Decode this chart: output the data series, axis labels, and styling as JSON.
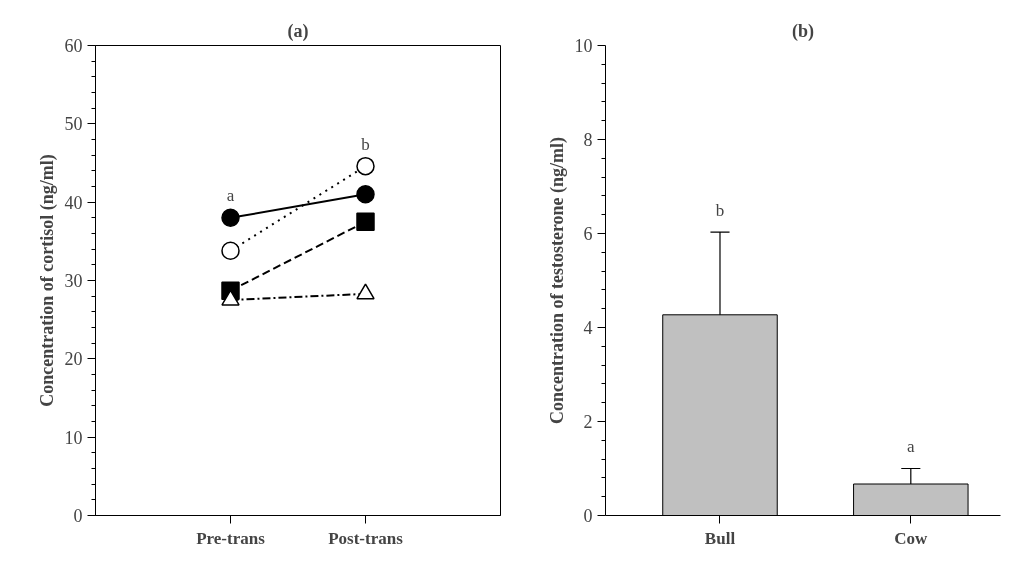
{
  "chart_data": [
    {
      "type": "line",
      "title": "(a)",
      "ylabel": "Concentration of cortisol (ng/ml)",
      "categories": [
        "Pre-trans",
        "Post-trans"
      ],
      "series": [
        {
          "color": "#000000",
          "values": [
            38,
            41
          ],
          "marker": "circle",
          "line_style": "solid"
        },
        {
          "color": "#ffffff",
          "values": [
            33.8,
            44.6
          ],
          "marker": "circle",
          "line_style": "dotted"
        },
        {
          "color": "#000000",
          "values": [
            28.7,
            37.5
          ],
          "marker": "square",
          "line_style": "dashed"
        },
        {
          "color": "#ffffff",
          "values": [
            27.5,
            28.3
          ],
          "marker": "triangle",
          "line_style": "dashdot"
        }
      ],
      "ylim": [
        0,
        60
      ],
      "yticks": [
        0,
        {
          "value": 2,
          "label": null
        },
        {
          "value": 4,
          "label": null
        },
        {
          "value": 6,
          "label": null
        },
        {
          "value": 8,
          "label": null
        },
        10,
        {
          "value": 12,
          "label": null
        },
        {
          "value": 14,
          "label": null
        },
        {
          "value": 16,
          "label": null
        },
        {
          "value": 18,
          "label": null
        },
        20,
        {
          "value": 22,
          "label": null
        },
        {
          "value": 24,
          "label": null
        },
        {
          "value": 26,
          "label": null
        },
        {
          "value": 28,
          "label": null
        },
        30,
        {
          "value": 32,
          "label": null
        },
        {
          "value": 34,
          "label": null
        },
        {
          "value": 36,
          "label": null
        },
        {
          "value": 38,
          "label": null
        },
        40,
        {
          "value": 42,
          "label": null
        },
        {
          "value": 44,
          "label": null
        },
        {
          "value": 46,
          "label": null
        },
        {
          "value": 48,
          "label": null
        },
        50,
        {
          "value": 52,
          "label": null
        },
        {
          "value": 54,
          "label": null
        },
        {
          "value": 56,
          "label": null
        },
        {
          "value": 58,
          "label": null
        },
        60
      ],
      "annotations": [
        "a",
        "b"
      ],
      "grid": false
    },
    {
      "type": "bar",
      "title": "(b)",
      "ylabel": "Concentration of testosterone (ng/ml)",
      "categories": [
        "Bull",
        "Cow"
      ],
      "values": [
        4.27,
        0.67
      ],
      "color": "#c0c0c0",
      "errors": [
        [
          4.27,
          6.03
        ],
        [
          0.67,
          1.0
        ]
      ],
      "ylim": [
        0,
        10
      ],
      "yticks": [
        0,
        {
          "value": 0.4,
          "label": null
        },
        {
          "value": 0.8,
          "label": null
        },
        {
          "value": 1.2,
          "label": null
        },
        {
          "value": 1.6,
          "label": null
        },
        2,
        {
          "value": 2.4,
          "label": null
        },
        {
          "value": 2.8,
          "label": null
        },
        {
          "value": 3.2,
          "label": null
        },
        {
          "value": 3.6,
          "label": null
        },
        4,
        {
          "value": 4.4,
          "label": null
        },
        {
          "value": 4.8,
          "label": null
        },
        {
          "value": 5.2,
          "label": null
        },
        {
          "value": 5.6,
          "label": null
        },
        6,
        {
          "value": 6.4,
          "label": null
        },
        {
          "value": 6.8,
          "label": null
        },
        {
          "value": 7.2,
          "label": null
        },
        {
          "value": 7.6,
          "label": null
        },
        8,
        {
          "value": 8.4,
          "label": null
        },
        {
          "value": 8.8,
          "label": null
        },
        {
          "value": 9.2,
          "label": null
        },
        {
          "value": 9.6,
          "label": null
        },
        10
      ],
      "annotations": [
        "b",
        "a"
      ],
      "grid": false
    }
  ]
}
